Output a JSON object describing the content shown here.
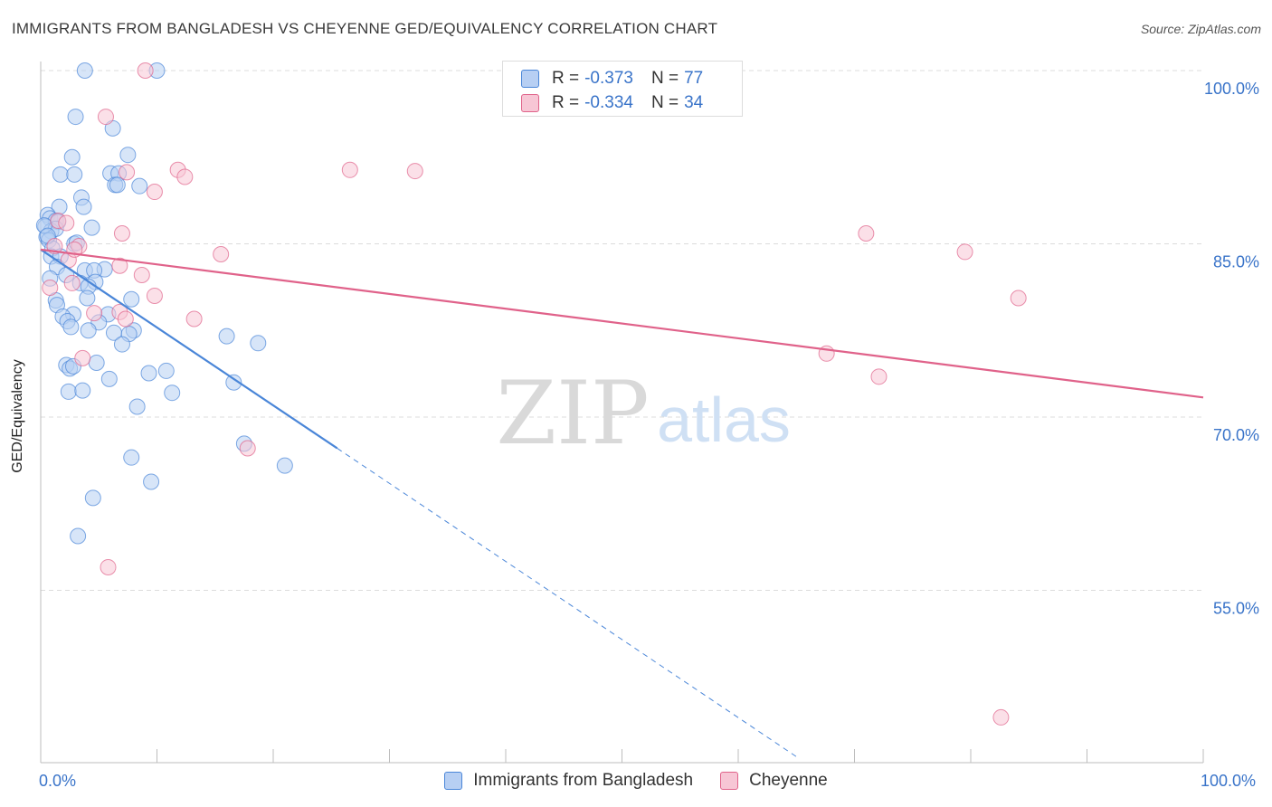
{
  "title": "IMMIGRANTS FROM BANGLADESH VS CHEYENNE GED/EQUIVALENCY CORRELATION CHART",
  "source": "Source: ZipAtlas.com",
  "watermark": {
    "zip": "ZIP",
    "atlas": "atlas"
  },
  "legend": {
    "rows": [
      {
        "r_label": "R =",
        "r_value": "-0.373",
        "n_label": "N =",
        "n_value": "77",
        "color": "#8ab4ee"
      },
      {
        "r_label": "R =",
        "r_value": "-0.334",
        "n_label": "N =",
        "n_value": "34",
        "color": "#f3a7bf"
      }
    ]
  },
  "bottom_legend": [
    {
      "label": "Immigrants from Bangladesh",
      "color": "#8ab4ee"
    },
    {
      "label": "Cheyenne",
      "color": "#f3a7bf"
    }
  ],
  "x_tick_labels": {
    "left": "0.0%",
    "right": "100.0%"
  },
  "chart_data": {
    "type": "scatter",
    "xlabel": "",
    "ylabel": "GED/Equivalency",
    "xlim": [
      0,
      100
    ],
    "ylim": [
      42,
      101.5
    ],
    "y_ticks": [
      {
        "value": 100,
        "label": "100.0%"
      },
      {
        "value": 85,
        "label": "85.0%"
      },
      {
        "value": 70,
        "label": "70.0%"
      },
      {
        "value": 55,
        "label": "55.0%"
      }
    ],
    "grid": true,
    "series": [
      {
        "name": "Immigrants from Bangladesh",
        "color": "#4a86d8",
        "fill": "#b7cff3",
        "points": [
          [
            3.8,
            100.0
          ],
          [
            10.0,
            100.0
          ],
          [
            3.0,
            96.0
          ],
          [
            6.2,
            95.0
          ],
          [
            2.7,
            92.5
          ],
          [
            7.5,
            92.7
          ],
          [
            1.7,
            91.0
          ],
          [
            2.9,
            91.0
          ],
          [
            6.0,
            91.1
          ],
          [
            6.7,
            91.1
          ],
          [
            8.5,
            90.0
          ],
          [
            6.4,
            90.1
          ],
          [
            6.6,
            90.1
          ],
          [
            3.5,
            89.0
          ],
          [
            1.6,
            88.2
          ],
          [
            3.7,
            88.2
          ],
          [
            0.6,
            87.5
          ],
          [
            0.8,
            87.2
          ],
          [
            1.3,
            87.0
          ],
          [
            1.5,
            86.9
          ],
          [
            0.4,
            86.5
          ],
          [
            4.4,
            86.4
          ],
          [
            0.9,
            86.1
          ],
          [
            1.3,
            86.3
          ],
          [
            0.5,
            85.6
          ],
          [
            0.7,
            85.3
          ],
          [
            2.9,
            85.0
          ],
          [
            1.0,
            84.6
          ],
          [
            3.1,
            85.1
          ],
          [
            0.9,
            83.9
          ],
          [
            1.7,
            83.9
          ],
          [
            1.4,
            83.0
          ],
          [
            5.5,
            82.8
          ],
          [
            3.8,
            82.7
          ],
          [
            4.6,
            82.7
          ],
          [
            2.2,
            82.3
          ],
          [
            0.8,
            82.0
          ],
          [
            4.7,
            81.7
          ],
          [
            3.4,
            81.6
          ],
          [
            4.1,
            81.3
          ],
          [
            4.0,
            80.3
          ],
          [
            7.8,
            80.2
          ],
          [
            1.3,
            80.1
          ],
          [
            1.4,
            79.7
          ],
          [
            2.8,
            78.9
          ],
          [
            5.8,
            78.9
          ],
          [
            1.9,
            78.7
          ],
          [
            2.3,
            78.3
          ],
          [
            5.0,
            78.2
          ],
          [
            2.6,
            77.8
          ],
          [
            4.1,
            77.5
          ],
          [
            8.0,
            77.5
          ],
          [
            6.3,
            77.3
          ],
          [
            7.6,
            77.2
          ],
          [
            16.0,
            77.0
          ],
          [
            18.7,
            76.4
          ],
          [
            7.0,
            76.3
          ],
          [
            2.2,
            74.5
          ],
          [
            4.8,
            74.7
          ],
          [
            2.5,
            74.2
          ],
          [
            2.8,
            74.4
          ],
          [
            10.8,
            74.0
          ],
          [
            9.3,
            73.8
          ],
          [
            5.9,
            73.3
          ],
          [
            16.6,
            73.0
          ],
          [
            2.4,
            72.2
          ],
          [
            3.6,
            72.3
          ],
          [
            11.3,
            72.1
          ],
          [
            8.3,
            70.9
          ],
          [
            17.5,
            67.7
          ],
          [
            21.0,
            65.8
          ],
          [
            7.8,
            66.5
          ],
          [
            9.5,
            64.4
          ],
          [
            4.5,
            63.0
          ],
          [
            3.2,
            59.7
          ],
          [
            0.3,
            86.6
          ],
          [
            0.6,
            85.7
          ]
        ],
        "trend_solid": [
          [
            0,
            84.5
          ],
          [
            25.5,
            67.3
          ]
        ],
        "trend_dashed": [
          [
            25.5,
            67.3
          ],
          [
            65,
            40.6
          ]
        ]
      },
      {
        "name": "Cheyenne",
        "color": "#e0628a",
        "fill": "#f7c6d5",
        "points": [
          [
            9.0,
            100.0
          ],
          [
            5.6,
            96.0
          ],
          [
            7.4,
            91.2
          ],
          [
            11.8,
            91.4
          ],
          [
            12.4,
            90.8
          ],
          [
            26.6,
            91.4
          ],
          [
            32.2,
            91.3
          ],
          [
            9.8,
            89.5
          ],
          [
            1.5,
            87.0
          ],
          [
            2.2,
            86.8
          ],
          [
            7.0,
            85.9
          ],
          [
            1.2,
            84.8
          ],
          [
            3.3,
            84.8
          ],
          [
            15.5,
            84.1
          ],
          [
            2.4,
            83.6
          ],
          [
            6.8,
            83.1
          ],
          [
            8.7,
            82.3
          ],
          [
            0.8,
            81.2
          ],
          [
            2.7,
            81.6
          ],
          [
            9.8,
            80.5
          ],
          [
            6.8,
            79.1
          ],
          [
            7.3,
            78.5
          ],
          [
            13.2,
            78.5
          ],
          [
            4.6,
            79.0
          ],
          [
            3.6,
            75.1
          ],
          [
            71.0,
            85.9
          ],
          [
            79.5,
            84.3
          ],
          [
            84.1,
            80.3
          ],
          [
            67.6,
            75.5
          ],
          [
            72.1,
            73.5
          ],
          [
            17.8,
            67.3
          ],
          [
            5.8,
            57.0
          ],
          [
            82.6,
            44.0
          ],
          [
            2.9,
            84.5
          ]
        ],
        "trend_solid": [
          [
            0,
            84.5
          ],
          [
            100,
            71.7
          ]
        ]
      }
    ]
  }
}
